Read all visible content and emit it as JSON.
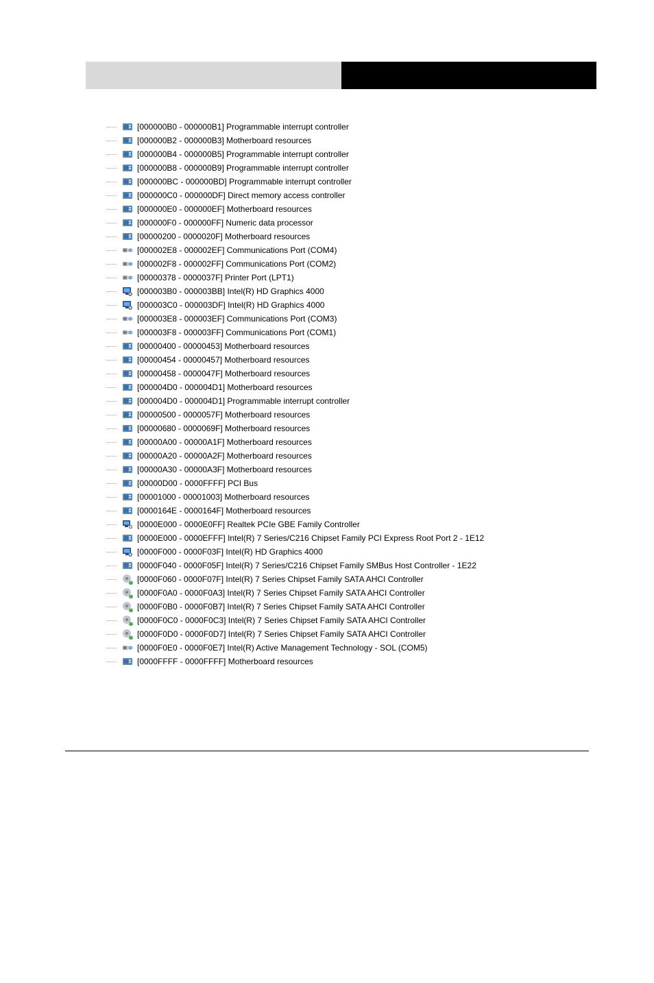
{
  "header": {
    "left_bg": "#d9d9d9",
    "right_bg": "#000000"
  },
  "icons": {
    "system": "system-device-icon",
    "port": "com-port-icon",
    "display": "display-adapter-icon",
    "network": "network-adapter-icon",
    "storage": "storage-controller-icon"
  },
  "icon_colors": {
    "system_board": "#5b8bb4",
    "system_chip": "#3a6ea5",
    "port_plug": "#9aa6b2",
    "port_wave": "#5b8bb4",
    "display_frame": "#2b4a6f",
    "display_screen": "#66aaff",
    "display_gear": "#6f7b88",
    "net_frame": "#2b4a6f",
    "net_screen": "#66aaff",
    "net_plug": "#7a8794",
    "storage_disc": "#c0c6cc",
    "storage_hub": "#7a8794",
    "storage_arrow": "#4aa34a"
  },
  "items": [
    {
      "icon": "system",
      "range": "[000000B0 - 000000B1]",
      "name": "Programmable interrupt controller"
    },
    {
      "icon": "system",
      "range": "[000000B2 - 000000B3]",
      "name": "Motherboard resources"
    },
    {
      "icon": "system",
      "range": "[000000B4 - 000000B5]",
      "name": "Programmable interrupt controller"
    },
    {
      "icon": "system",
      "range": "[000000B8 - 000000B9]",
      "name": "Programmable interrupt controller"
    },
    {
      "icon": "system",
      "range": "[000000BC - 000000BD]",
      "name": "Programmable interrupt controller"
    },
    {
      "icon": "system",
      "range": "[000000C0 - 000000DF]",
      "name": "Direct memory access controller"
    },
    {
      "icon": "system",
      "range": "[000000E0 - 000000EF]",
      "name": "Motherboard resources"
    },
    {
      "icon": "system",
      "range": "[000000F0 - 000000FF]",
      "name": "Numeric data processor"
    },
    {
      "icon": "system",
      "range": "[00000200 - 0000020F]",
      "name": "Motherboard resources"
    },
    {
      "icon": "port",
      "range": "[000002E8 - 000002EF]",
      "name": "Communications Port (COM4)"
    },
    {
      "icon": "port",
      "range": "[000002F8 - 000002FF]",
      "name": "Communications Port (COM2)"
    },
    {
      "icon": "port",
      "range": "[00000378 - 0000037F]",
      "name": "Printer Port (LPT1)"
    },
    {
      "icon": "display",
      "range": "[000003B0 - 000003BB]",
      "name": "Intel(R) HD Graphics 4000"
    },
    {
      "icon": "display",
      "range": "[000003C0 - 000003DF]",
      "name": "Intel(R) HD Graphics 4000"
    },
    {
      "icon": "port",
      "range": "[000003E8 - 000003EF]",
      "name": "Communications Port (COM3)"
    },
    {
      "icon": "port",
      "range": "[000003F8 - 000003FF]",
      "name": "Communications Port (COM1)"
    },
    {
      "icon": "system",
      "range": "[00000400 - 00000453]",
      "name": "Motherboard resources"
    },
    {
      "icon": "system",
      "range": "[00000454 - 00000457]",
      "name": "Motherboard resources"
    },
    {
      "icon": "system",
      "range": "[00000458 - 0000047F]",
      "name": "Motherboard resources"
    },
    {
      "icon": "system",
      "range": "[000004D0 - 000004D1]",
      "name": "Motherboard resources"
    },
    {
      "icon": "system",
      "range": "[000004D0 - 000004D1]",
      "name": "Programmable interrupt controller"
    },
    {
      "icon": "system",
      "range": "[00000500 - 0000057F]",
      "name": "Motherboard resources"
    },
    {
      "icon": "system",
      "range": "[00000680 - 0000069F]",
      "name": "Motherboard resources"
    },
    {
      "icon": "system",
      "range": "[00000A00 - 00000A1F]",
      "name": "Motherboard resources"
    },
    {
      "icon": "system",
      "range": "[00000A20 - 00000A2F]",
      "name": "Motherboard resources"
    },
    {
      "icon": "system",
      "range": "[00000A30 - 00000A3F]",
      "name": "Motherboard resources"
    },
    {
      "icon": "system",
      "range": "[00000D00 - 0000FFFF]",
      "name": "PCI Bus"
    },
    {
      "icon": "system",
      "range": "[00001000 - 00001003]",
      "name": "Motherboard resources"
    },
    {
      "icon": "system",
      "range": "[0000164E - 0000164F]",
      "name": "Motherboard resources"
    },
    {
      "icon": "network",
      "range": "[0000E000 - 0000E0FF]",
      "name": "Realtek PCIe GBE Family Controller"
    },
    {
      "icon": "system",
      "range": "[0000E000 - 0000EFFF]",
      "name": "Intel(R) 7 Series/C216 Chipset Family PCI Express Root Port 2 - 1E12"
    },
    {
      "icon": "display",
      "range": "[0000F000 - 0000F03F]",
      "name": "Intel(R) HD Graphics 4000"
    },
    {
      "icon": "system",
      "range": "[0000F040 - 0000F05F]",
      "name": "Intel(R) 7 Series/C216 Chipset Family SMBus Host Controller - 1E22"
    },
    {
      "icon": "storage",
      "range": "[0000F060 - 0000F07F]",
      "name": "Intel(R) 7 Series Chipset Family SATA AHCI Controller"
    },
    {
      "icon": "storage",
      "range": "[0000F0A0 - 0000F0A3]",
      "name": "Intel(R) 7 Series Chipset Family SATA AHCI Controller"
    },
    {
      "icon": "storage",
      "range": "[0000F0B0 - 0000F0B7]",
      "name": "Intel(R) 7 Series Chipset Family SATA AHCI Controller"
    },
    {
      "icon": "storage",
      "range": "[0000F0C0 - 0000F0C3]",
      "name": "Intel(R) 7 Series Chipset Family SATA AHCI Controller"
    },
    {
      "icon": "storage",
      "range": "[0000F0D0 - 0000F0D7]",
      "name": "Intel(R) 7 Series Chipset Family SATA AHCI Controller"
    },
    {
      "icon": "port",
      "range": "[0000F0E0 - 0000F0E7]",
      "name": "Intel(R) Active Management Technology - SOL (COM5)"
    },
    {
      "icon": "system",
      "range": "[0000FFFF - 0000FFFF]",
      "name": "Motherboard resources"
    }
  ]
}
